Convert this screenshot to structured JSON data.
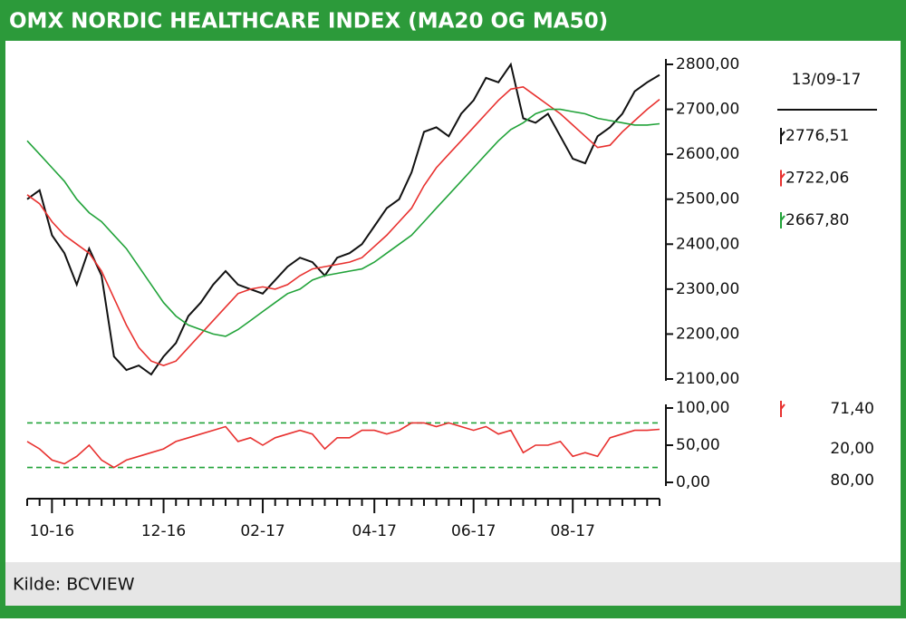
{
  "source": "Kilde: BCVIEW",
  "chart_data": [
    {
      "type": "line",
      "title": "OMX NORDIC HEALTHCARE INDEX (MA20 OG MA50)",
      "date_label": "13/09-17",
      "ylim": [
        2100,
        2800
      ],
      "yticks": [
        {
          "value": 2800,
          "label": "2800,00"
        },
        {
          "value": 2700,
          "label": "2700,00"
        },
        {
          "value": 2600,
          "label": "2600,00"
        },
        {
          "value": 2500,
          "label": "2500,00"
        },
        {
          "value": 2400,
          "label": "2400,00"
        },
        {
          "value": 2300,
          "label": "2300,00"
        },
        {
          "value": 2200,
          "label": "2200,00"
        },
        {
          "value": 2100,
          "label": "2100,00"
        }
      ],
      "series": [
        {
          "color": "#111111",
          "last_label": "2776,51",
          "values": [
            2500,
            2520,
            2420,
            2380,
            2310,
            2390,
            2330,
            2150,
            2120,
            2130,
            2110,
            2150,
            2180,
            2240,
            2270,
            2310,
            2340,
            2310,
            2300,
            2290,
            2320,
            2350,
            2370,
            2360,
            2330,
            2370,
            2380,
            2400,
            2440,
            2480,
            2500,
            2560,
            2650,
            2660,
            2640,
            2690,
            2720,
            2770,
            2760,
            2800,
            2680,
            2670,
            2690,
            2640,
            2590,
            2580,
            2640,
            2660,
            2690,
            2740,
            2760,
            2776.51
          ]
        },
        {
          "color": "#e8312f",
          "last_label": "2722,06",
          "values": [
            2510,
            2490,
            2450,
            2420,
            2400,
            2380,
            2340,
            2280,
            2220,
            2170,
            2140,
            2130,
            2140,
            2170,
            2200,
            2230,
            2260,
            2290,
            2300,
            2305,
            2300,
            2310,
            2330,
            2345,
            2350,
            2355,
            2360,
            2370,
            2395,
            2420,
            2450,
            2480,
            2530,
            2570,
            2600,
            2630,
            2660,
            2690,
            2720,
            2745,
            2750,
            2730,
            2710,
            2690,
            2665,
            2640,
            2615,
            2620,
            2650,
            2675,
            2700,
            2722.06
          ]
        },
        {
          "color": "#22a33a",
          "last_label": "2667,80",
          "values": [
            2630,
            2600,
            2570,
            2540,
            2500,
            2470,
            2450,
            2420,
            2390,
            2350,
            2310,
            2270,
            2240,
            2220,
            2210,
            2200,
            2195,
            2210,
            2230,
            2250,
            2270,
            2290,
            2300,
            2320,
            2330,
            2335,
            2340,
            2345,
            2360,
            2380,
            2400,
            2420,
            2450,
            2480,
            2510,
            2540,
            2570,
            2600,
            2630,
            2655,
            2670,
            2690,
            2700,
            2700,
            2695,
            2690,
            2680,
            2675,
            2670,
            2665,
            2665,
            2667.8
          ]
        }
      ]
    },
    {
      "type": "line",
      "ylim": [
        0,
        100
      ],
      "yticks": [
        {
          "value": 100,
          "label": "100,00"
        },
        {
          "value": 50,
          "label": "50,00"
        },
        {
          "value": 0,
          "label": "0,00"
        }
      ],
      "levels": [
        {
          "value": 20,
          "label": "20,00",
          "color": "#22a33a"
        },
        {
          "value": 80,
          "label": "80,00",
          "color": "#22a33a"
        }
      ],
      "categories": [
        null,
        null,
        "10-16",
        null,
        null,
        null,
        null,
        null,
        null,
        null,
        null,
        "12-16",
        null,
        null,
        null,
        null,
        null,
        null,
        null,
        "02-17",
        null,
        null,
        null,
        null,
        null,
        null,
        null,
        null,
        "04-17",
        null,
        null,
        null,
        null,
        null,
        null,
        null,
        "06-17",
        null,
        null,
        null,
        null,
        null,
        null,
        null,
        "08-17",
        null,
        null,
        null,
        null,
        null,
        null,
        null
      ],
      "series": [
        {
          "color": "#e8312f",
          "last_label": "71,40",
          "values": [
            55,
            45,
            30,
            25,
            35,
            50,
            30,
            20,
            30,
            35,
            40,
            45,
            55,
            60,
            65,
            70,
            75,
            55,
            60,
            50,
            60,
            65,
            70,
            65,
            45,
            60,
            60,
            70,
            70,
            65,
            70,
            80,
            80,
            75,
            80,
            75,
            70,
            75,
            65,
            70,
            40,
            50,
            50,
            55,
            35,
            40,
            35,
            60,
            65,
            70,
            70,
            71.4
          ]
        }
      ]
    }
  ]
}
